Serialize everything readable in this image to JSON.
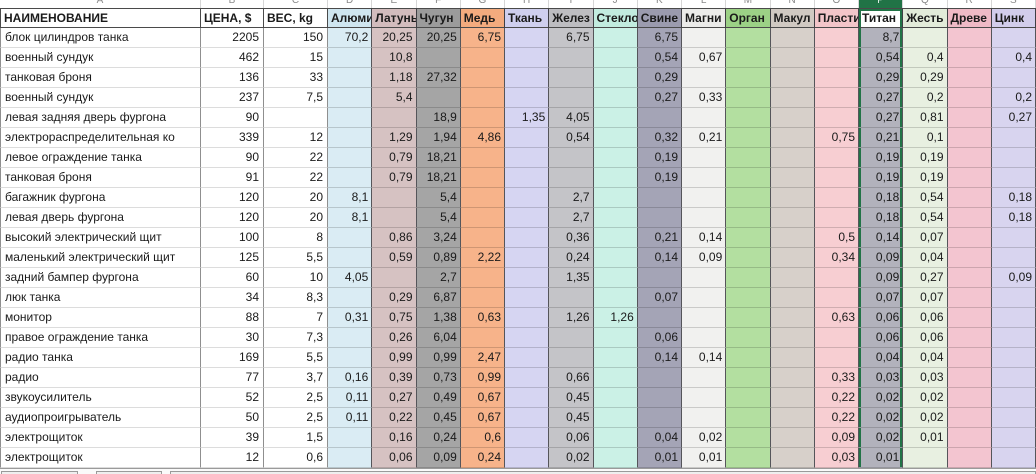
{
  "selection_color": "#217346",
  "sheet": {
    "column_letters": [
      "A",
      "B",
      "C",
      "D",
      "E",
      "F",
      "G",
      "H",
      "I",
      "J",
      "K",
      "L",
      "M",
      "N",
      "O",
      "P",
      "Q",
      "R",
      "S"
    ],
    "selected_material_index": 12,
    "header": {
      "name": "НАИМЕНОВАНИЕ",
      "price": "ЦЕНА, $",
      "weight": "ВЕС, kg"
    },
    "materials": [
      {
        "label": "Алюми",
        "fill": "#daecf4",
        "header_fill": "#cfe6f0"
      },
      {
        "label": "Латунь",
        "fill": "#d6c2c2",
        "header_fill": "#d2bcbd"
      },
      {
        "label": "Чугун",
        "fill": "#a5a5a5",
        "header_fill": "#9b9b9b"
      },
      {
        "label": "Медь",
        "fill": "#f7b38a",
        "header_fill": "#f3ab7e"
      },
      {
        "label": "Ткань",
        "fill": "#d6d5f2",
        "header_fill": "#cfcfee"
      },
      {
        "label": "Желез",
        "fill": "#c4c4c8",
        "header_fill": "#bdbdc1"
      },
      {
        "label": "Стекло",
        "fill": "#cbf1e6",
        "header_fill": "#c2ecdf"
      },
      {
        "label": "Свине",
        "fill": "#a4a4b6",
        "header_fill": "#9b9bae"
      },
      {
        "label": "Магни",
        "fill": "#f1f1ef",
        "header_fill": "#ebebe9"
      },
      {
        "label": "Орган",
        "fill": "#b3dfa0",
        "header_fill": "#9cd186"
      },
      {
        "label": "Макул",
        "fill": "#d7d0ca",
        "header_fill": "#d0c9c2"
      },
      {
        "label": "Пласти",
        "fill": "#f7ced2",
        "header_fill": "#f3c5c9"
      },
      {
        "label": "Титан",
        "fill": "#b2b2bc",
        "header_fill": "#ffffff"
      },
      {
        "label": "Жесть",
        "fill": "#e8f0e1",
        "header_fill": "#e2ebd9"
      },
      {
        "label": "Древе",
        "fill": "#f3c5d0",
        "header_fill": "#efbac6"
      },
      {
        "label": "Цинк",
        "fill": "#d8d4ef",
        "header_fill": "#d2cdeb"
      }
    ],
    "rows": [
      {
        "name": "блок цилиндров танка",
        "price": "2205",
        "weight": "150",
        "values": [
          "70,2",
          "20,25",
          "20,25",
          "6,75",
          "",
          "6,75",
          "",
          "6,75",
          "",
          "",
          "",
          "",
          "8,7",
          "",
          "",
          ""
        ]
      },
      {
        "name": "военный сундук",
        "price": "462",
        "weight": "15",
        "values": [
          "",
          "10,8",
          "",
          "",
          "",
          "",
          "",
          "0,54",
          "0,67",
          "",
          "",
          "",
          "0,54",
          "0,4",
          "",
          "0,4"
        ]
      },
      {
        "name": "танковая броня",
        "price": "136",
        "weight": "33",
        "values": [
          "",
          "1,18",
          "27,32",
          "",
          "",
          "",
          "",
          "0,29",
          "",
          "",
          "",
          "",
          "0,29",
          "0,29",
          "",
          ""
        ]
      },
      {
        "name": "военный сундук",
        "price": "237",
        "weight": "7,5",
        "values": [
          "",
          "5,4",
          "",
          "",
          "",
          "",
          "",
          "0,27",
          "0,33",
          "",
          "",
          "",
          "0,27",
          "0,2",
          "",
          "0,2"
        ]
      },
      {
        "name": "левая задняя дверь фургона",
        "price": "90",
        "weight": "",
        "values": [
          "",
          "",
          "18,9",
          "",
          "1,35",
          "4,05",
          "",
          "",
          "",
          "",
          "",
          "",
          "0,27",
          "0,81",
          "",
          "0,27"
        ]
      },
      {
        "name": "электрораспределительная ко",
        "price": "339",
        "weight": "12",
        "values": [
          "",
          "1,29",
          "1,94",
          "4,86",
          "",
          "0,54",
          "",
          "0,32",
          "0,21",
          "",
          "",
          "0,75",
          "0,21",
          "0,1",
          "",
          ""
        ]
      },
      {
        "name": "левое ограждение танка",
        "price": "90",
        "weight": "22",
        "values": [
          "",
          "0,79",
          "18,21",
          "",
          "",
          "",
          "",
          "0,19",
          "",
          "",
          "",
          "",
          "0,19",
          "0,19",
          "",
          ""
        ]
      },
      {
        "name": "танковая броня",
        "price": "91",
        "weight": "22",
        "values": [
          "",
          "0,79",
          "18,21",
          "",
          "",
          "",
          "",
          "0,19",
          "",
          "",
          "",
          "",
          "0,19",
          "0,19",
          "",
          ""
        ]
      },
      {
        "name": "багажник фургона",
        "price": "120",
        "weight": "20",
        "values": [
          "8,1",
          "",
          "5,4",
          "",
          "",
          "2,7",
          "",
          "",
          "",
          "",
          "",
          "",
          "0,18",
          "0,54",
          "",
          "0,18"
        ]
      },
      {
        "name": "левая дверь фургона",
        "price": "120",
        "weight": "20",
        "values": [
          "8,1",
          "",
          "5,4",
          "",
          "",
          "2,7",
          "",
          "",
          "",
          "",
          "",
          "",
          "0,18",
          "0,54",
          "",
          "0,18"
        ]
      },
      {
        "name": "высокий электрический щит",
        "price": "100",
        "weight": "8",
        "values": [
          "",
          "0,86",
          "3,24",
          "",
          "",
          "0,36",
          "",
          "0,21",
          "0,14",
          "",
          "",
          "0,5",
          "0,14",
          "0,07",
          "",
          ""
        ]
      },
      {
        "name": "маленький электрический щит",
        "price": "125",
        "weight": "5,5",
        "values": [
          "",
          "0,59",
          "0,89",
          "2,22",
          "",
          "0,24",
          "",
          "0,14",
          "0,09",
          "",
          "",
          "0,34",
          "0,09",
          "0,04",
          "",
          ""
        ]
      },
      {
        "name": "задний бампер фургона",
        "price": "60",
        "weight": "10",
        "values": [
          "4,05",
          "",
          "2,7",
          "",
          "",
          "1,35",
          "",
          "",
          "",
          "",
          "",
          "",
          "0,09",
          "0,27",
          "",
          "0,09"
        ]
      },
      {
        "name": "люк танка",
        "price": "34",
        "weight": "8,3",
        "values": [
          "",
          "0,29",
          "6,87",
          "",
          "",
          "",
          "",
          "0,07",
          "",
          "",
          "",
          "",
          "0,07",
          "0,07",
          "",
          ""
        ]
      },
      {
        "name": "монитор",
        "price": "88",
        "weight": "7",
        "values": [
          "0,31",
          "0,75",
          "1,38",
          "0,63",
          "",
          "1,26",
          "1,26",
          "",
          "",
          "",
          "",
          "0,63",
          "0,06",
          "0,06",
          "",
          ""
        ]
      },
      {
        "name": "правое ограждение танка",
        "price": "30",
        "weight": "7,3",
        "values": [
          "",
          "0,26",
          "6,04",
          "",
          "",
          "",
          "",
          "0,06",
          "",
          "",
          "",
          "",
          "0,06",
          "0,06",
          "",
          ""
        ]
      },
      {
        "name": "радио танка",
        "price": "169",
        "weight": "5,5",
        "values": [
          "",
          "0,99",
          "0,99",
          "2,47",
          "",
          "",
          "",
          "0,14",
          "0,14",
          "",
          "",
          "",
          "0,04",
          "0,04",
          "",
          ""
        ]
      },
      {
        "name": "радио",
        "price": "77",
        "weight": "3,7",
        "values": [
          "0,16",
          "0,39",
          "0,73",
          "0,99",
          "",
          "0,66",
          "",
          "",
          "",
          "",
          "",
          "0,33",
          "0,03",
          "0,03",
          "",
          ""
        ]
      },
      {
        "name": "звукоусилитель",
        "price": "52",
        "weight": "2,5",
        "values": [
          "0,11",
          "0,27",
          "0,49",
          "0,67",
          "",
          "0,45",
          "",
          "",
          "",
          "",
          "",
          "0,22",
          "0,02",
          "0,02",
          "",
          ""
        ]
      },
      {
        "name": "аудиопроигрыватель",
        "price": "50",
        "weight": "2,5",
        "values": [
          "0,11",
          "0,22",
          "0,45",
          "0,67",
          "",
          "0,45",
          "",
          "",
          "",
          "",
          "",
          "0,22",
          "0,02",
          "0,02",
          "",
          ""
        ]
      },
      {
        "name": "электрощиток",
        "price": "39",
        "weight": "1,5",
        "values": [
          "",
          "0,16",
          "0,24",
          "0,6",
          "",
          "0,06",
          "",
          "0,04",
          "0,02",
          "",
          "",
          "0,09",
          "0,02",
          "0,01",
          "",
          ""
        ]
      },
      {
        "name": "электрощиток",
        "price": "12",
        "weight": "0,6",
        "values": [
          "",
          "0,06",
          "0,09",
          "0,24",
          "",
          "0,02",
          "",
          "0,01",
          "0,01",
          "",
          "",
          "0,03",
          "0,01",
          "",
          "",
          ""
        ]
      }
    ]
  }
}
